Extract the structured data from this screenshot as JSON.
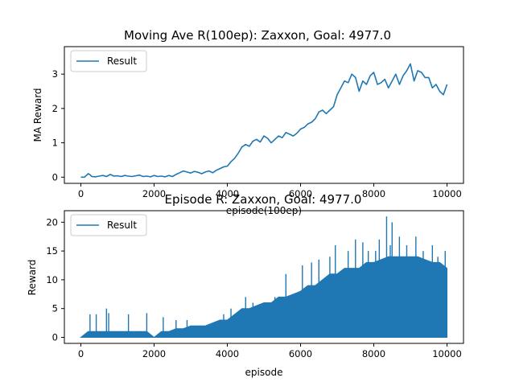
{
  "chart_data": [
    {
      "type": "line",
      "title": "Moving Ave R(100ep): Zaxxon, Goal: 4977.0",
      "xlabel": "episode(100ep)",
      "ylabel": "MA Reward",
      "xlim": [
        -450,
        10450
      ],
      "ylim": [
        -0.18,
        3.8
      ],
      "xticks": [
        0,
        2000,
        4000,
        6000,
        8000,
        10000
      ],
      "yticks": [
        0,
        1,
        2,
        3
      ],
      "legend": {
        "position": "upper-left",
        "entries": [
          "Result"
        ]
      },
      "grid": false,
      "color": "#1f77b4",
      "series": [
        {
          "name": "Result",
          "x": [
            0,
            100,
            150,
            200,
            250,
            300,
            400,
            500,
            600,
            700,
            800,
            900,
            1000,
            1100,
            1200,
            1300,
            1400,
            1500,
            1600,
            1700,
            1800,
            1900,
            2000,
            2100,
            2200,
            2300,
            2400,
            2500,
            2600,
            2700,
            2800,
            2900,
            3000,
            3100,
            3200,
            3300,
            3400,
            3500,
            3600,
            3700,
            3800,
            3900,
            4000,
            4100,
            4200,
            4300,
            4400,
            4500,
            4600,
            4700,
            4800,
            4900,
            5000,
            5100,
            5200,
            5300,
            5400,
            5500,
            5600,
            5700,
            5800,
            5900,
            6000,
            6100,
            6200,
            6300,
            6400,
            6500,
            6600,
            6700,
            6800,
            6900,
            7000,
            7100,
            7200,
            7300,
            7400,
            7500,
            7600,
            7700,
            7800,
            7900,
            8000,
            8100,
            8200,
            8300,
            8400,
            8500,
            8600,
            8700,
            8800,
            8900,
            9000,
            9100,
            9200,
            9300,
            9400,
            9500,
            9600,
            9700,
            9800,
            9900,
            10000
          ],
          "y": [
            0.0,
            0.0,
            0.05,
            0.1,
            0.07,
            0.02,
            0.01,
            0.03,
            0.05,
            0.02,
            0.08,
            0.03,
            0.04,
            0.02,
            0.05,
            0.03,
            0.02,
            0.04,
            0.06,
            0.02,
            0.03,
            0.01,
            0.05,
            0.02,
            0.03,
            0.01,
            0.05,
            0.02,
            0.08,
            0.13,
            0.18,
            0.15,
            0.12,
            0.17,
            0.14,
            0.1,
            0.15,
            0.18,
            0.13,
            0.2,
            0.25,
            0.3,
            0.32,
            0.45,
            0.55,
            0.7,
            0.88,
            0.95,
            0.9,
            1.05,
            1.1,
            1.02,
            1.2,
            1.13,
            1.0,
            1.1,
            1.2,
            1.15,
            1.3,
            1.25,
            1.2,
            1.28,
            1.4,
            1.45,
            1.55,
            1.6,
            1.7,
            1.9,
            1.95,
            1.85,
            1.95,
            2.05,
            2.4,
            2.6,
            2.8,
            2.75,
            3.0,
            2.9,
            2.5,
            2.8,
            2.7,
            2.95,
            3.05,
            2.7,
            2.75,
            2.85,
            2.6,
            2.8,
            3.0,
            2.7,
            2.95,
            3.1,
            3.3,
            2.8,
            3.1,
            3.05,
            2.9,
            2.9,
            2.6,
            2.7,
            2.5,
            2.4,
            2.7
          ]
        }
      ]
    },
    {
      "type": "line",
      "title": "Episode R: Zaxxon, Goal: 4977.0",
      "xlabel": "episode",
      "ylabel": "Reward",
      "xlim": [
        -450,
        10450
      ],
      "ylim": [
        -1.05,
        22.0
      ],
      "xticks": [
        0,
        2000,
        4000,
        6000,
        8000,
        10000
      ],
      "yticks": [
        0,
        5,
        10,
        15,
        20
      ],
      "legend": {
        "position": "upper-left",
        "entries": [
          "Result"
        ]
      },
      "grid": false,
      "color": "#1f77b4",
      "series": [
        {
          "name": "Result",
          "x": [
            0,
            200,
            400,
            600,
            800,
            1000,
            1200,
            1400,
            1600,
            1800,
            2000,
            2200,
            2400,
            2600,
            2800,
            3000,
            3200,
            3400,
            3600,
            3800,
            4000,
            4200,
            4400,
            4600,
            4800,
            5000,
            5200,
            5400,
            5600,
            5800,
            6000,
            6200,
            6400,
            6600,
            6800,
            7000,
            7200,
            7400,
            7600,
            7800,
            8000,
            8200,
            8400,
            8600,
            8800,
            9000,
            9200,
            9400,
            9600,
            9800,
            10000
          ],
          "y": [
            0,
            1,
            1,
            1,
            1,
            1,
            1,
            1,
            1,
            1,
            0,
            1,
            1,
            1.5,
            1.5,
            2,
            2,
            2,
            2.5,
            3,
            3,
            4,
            5,
            5,
            5.5,
            6,
            6,
            7,
            7,
            7.5,
            8,
            9,
            9,
            10,
            11,
            11,
            12,
            12,
            12,
            13,
            13,
            13.5,
            14,
            14,
            14,
            14,
            14,
            13.5,
            13,
            13,
            12
          ]
        }
      ],
      "spikes": [
        {
          "x": 250,
          "y": 4
        },
        {
          "x": 420,
          "y": 4
        },
        {
          "x": 700,
          "y": 5
        },
        {
          "x": 760,
          "y": 4.2
        },
        {
          "x": 1300,
          "y": 4
        },
        {
          "x": 1800,
          "y": 4.2
        },
        {
          "x": 2250,
          "y": 3.5
        },
        {
          "x": 2600,
          "y": 3
        },
        {
          "x": 2900,
          "y": 3
        },
        {
          "x": 3900,
          "y": 4
        },
        {
          "x": 4100,
          "y": 5
        },
        {
          "x": 4500,
          "y": 7
        },
        {
          "x": 4700,
          "y": 6
        },
        {
          "x": 5300,
          "y": 7
        },
        {
          "x": 5600,
          "y": 11
        },
        {
          "x": 6050,
          "y": 12.5
        },
        {
          "x": 6300,
          "y": 13
        },
        {
          "x": 6500,
          "y": 13.5
        },
        {
          "x": 6800,
          "y": 14
        },
        {
          "x": 6950,
          "y": 16
        },
        {
          "x": 7300,
          "y": 15
        },
        {
          "x": 7500,
          "y": 17
        },
        {
          "x": 7700,
          "y": 16.5
        },
        {
          "x": 7850,
          "y": 15
        },
        {
          "x": 8050,
          "y": 15
        },
        {
          "x": 8150,
          "y": 17
        },
        {
          "x": 8350,
          "y": 21
        },
        {
          "x": 8450,
          "y": 16
        },
        {
          "x": 8500,
          "y": 20
        },
        {
          "x": 8700,
          "y": 17.5
        },
        {
          "x": 8900,
          "y": 16
        },
        {
          "x": 9150,
          "y": 17.5
        },
        {
          "x": 9350,
          "y": 15
        },
        {
          "x": 9600,
          "y": 16
        },
        {
          "x": 9750,
          "y": 14
        },
        {
          "x": 9950,
          "y": 15
        }
      ]
    }
  ]
}
